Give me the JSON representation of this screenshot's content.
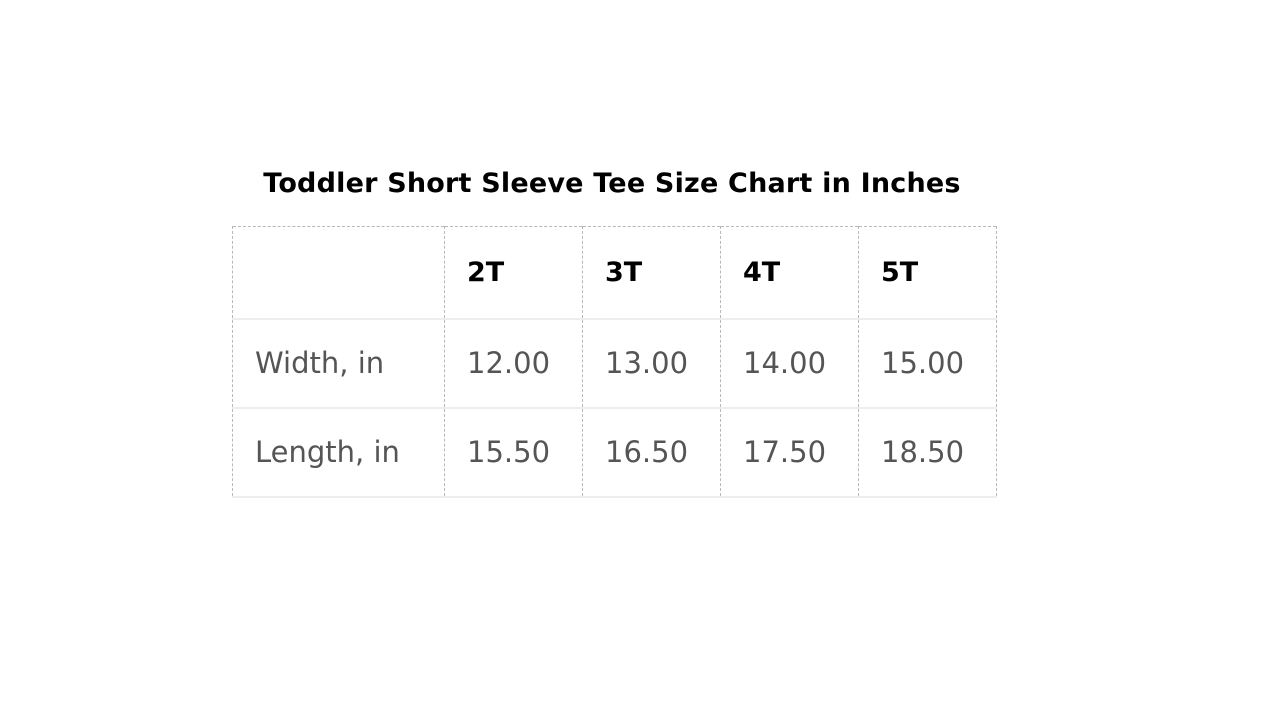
{
  "title": "Toddler Short Sleeve Tee Size Chart in Inches",
  "table": {
    "columns": [
      "",
      "2T",
      "3T",
      "4T",
      "5T"
    ],
    "rows": [
      {
        "label": "Width, in",
        "values": [
          "12.00",
          "13.00",
          "14.00",
          "15.00"
        ]
      },
      {
        "label": "Length, in",
        "values": [
          "15.50",
          "16.50",
          "17.50",
          "18.50"
        ]
      }
    ]
  }
}
